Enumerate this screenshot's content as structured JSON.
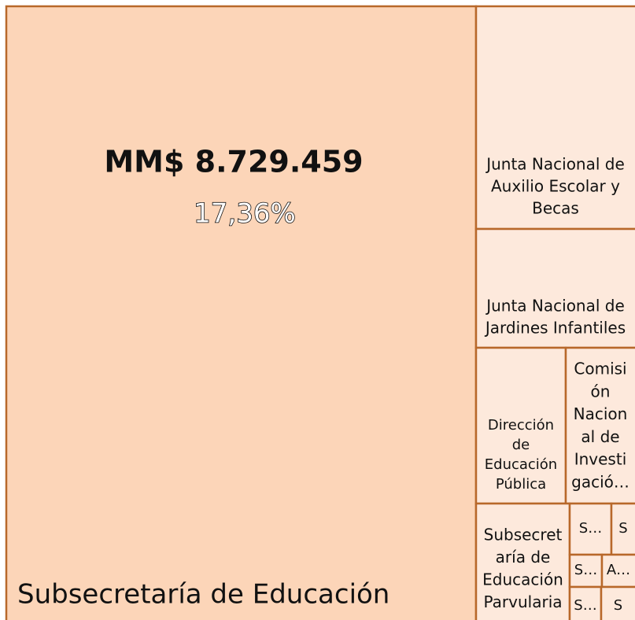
{
  "chart_data": {
    "type": "treemap",
    "tiles": [
      {
        "label": "Subsecretaría de Educación",
        "value_label": "MM$ 8.729.459",
        "percent_label": "17,36%"
      },
      {
        "lines": [
          "Junta Nacional de",
          "Auxilio Escolar y",
          "Becas"
        ]
      },
      {
        "lines": [
          "Junta Nacional de",
          "Jardines Infantiles"
        ]
      },
      {
        "lines": [
          "Dirección",
          "de",
          "Educación",
          "Pública"
        ]
      },
      {
        "lines": [
          "Comisi",
          "ón",
          "Nacion",
          "al de",
          "Investi",
          "gació…"
        ]
      },
      {
        "lines": [
          "Subsecret",
          "aría de",
          "Educación",
          "Parvularia"
        ]
      },
      {
        "lines": [
          "S…"
        ]
      },
      {
        "lines": [
          "S"
        ]
      },
      {
        "lines": [
          "S…"
        ]
      },
      {
        "lines": [
          "A…"
        ]
      },
      {
        "lines": [
          "S…"
        ]
      },
      {
        "lines": [
          "S"
        ]
      }
    ]
  }
}
